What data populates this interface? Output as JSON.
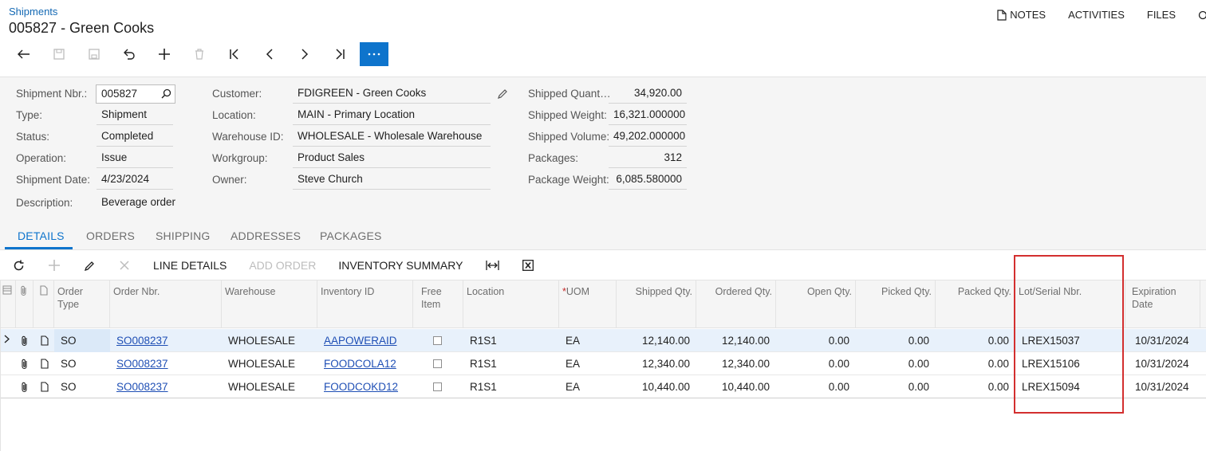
{
  "header": {
    "breadcrumb": "Shipments",
    "title": "005827 - Green Cooks",
    "links": {
      "notes": "NOTES",
      "activities": "ACTIVITIES",
      "files": "FILES"
    }
  },
  "summary": {
    "left": {
      "shipment_nbr": {
        "label": "Shipment Nbr.:",
        "value": "005827"
      },
      "type": {
        "label": "Type:",
        "value": "Shipment"
      },
      "status": {
        "label": "Status:",
        "value": "Completed"
      },
      "operation": {
        "label": "Operation:",
        "value": "Issue"
      },
      "shipment_date": {
        "label": "Shipment Date:",
        "value": "4/23/2024"
      },
      "description": {
        "label": "Description:",
        "value": "Beverage order"
      }
    },
    "middle": {
      "customer": {
        "label": "Customer:",
        "value": "FDIGREEN - Green Cooks"
      },
      "location": {
        "label": "Location:",
        "value": "MAIN - Primary Location"
      },
      "warehouse": {
        "label": "Warehouse ID:",
        "value": "WHOLESALE - Wholesale Warehouse"
      },
      "workgroup": {
        "label": "Workgroup:",
        "value": "Product Sales"
      },
      "owner": {
        "label": "Owner:",
        "value": "Steve Church"
      }
    },
    "right": {
      "shipped_qty": {
        "label": "Shipped Quant…",
        "value": "34,920.00"
      },
      "shipped_weight": {
        "label": "Shipped Weight:",
        "value": "16,321.000000"
      },
      "shipped_volume": {
        "label": "Shipped Volume:",
        "value": "49,202.000000"
      },
      "packages": {
        "label": "Packages:",
        "value": "312"
      },
      "package_weight": {
        "label": "Package Weight:",
        "value": "6,085.580000"
      }
    }
  },
  "tabs": [
    "DETAILS",
    "ORDERS",
    "SHIPPING",
    "ADDRESSES",
    "PACKAGES"
  ],
  "grid_toolbar": {
    "line_details": "LINE DETAILS",
    "add_order": "ADD ORDER",
    "inventory_summary": "INVENTORY SUMMARY"
  },
  "grid": {
    "columns": {
      "order_type": "Order Type",
      "order_nbr": "Order Nbr.",
      "warehouse": "Warehouse",
      "inventory_id": "Inventory ID",
      "free_item": "Free Item",
      "location": "Location",
      "uom_req": "*",
      "uom": "UOM",
      "shipped_qty": "Shipped Qty.",
      "ordered_qty": "Ordered Qty.",
      "open_qty": "Open Qty.",
      "picked_qty": "Picked Qty.",
      "packed_qty": "Packed Qty.",
      "lot_serial": "Lot/Serial Nbr.",
      "expiration": "Expiration Date"
    },
    "rows": [
      {
        "order_type": "SO",
        "order_nbr": "SO008237",
        "warehouse": "WHOLESALE",
        "inventory_id": "AAPOWERAID",
        "location": "R1S1",
        "uom": "EA",
        "shipped_qty": "12,140.00",
        "ordered_qty": "12,140.00",
        "open_qty": "0.00",
        "picked_qty": "0.00",
        "packed_qty": "0.00",
        "lot_serial": "LREX15037",
        "expiration": "10/31/2024"
      },
      {
        "order_type": "SO",
        "order_nbr": "SO008237",
        "warehouse": "WHOLESALE",
        "inventory_id": "FOODCOLA12",
        "location": "R1S1",
        "uom": "EA",
        "shipped_qty": "12,340.00",
        "ordered_qty": "12,340.00",
        "open_qty": "0.00",
        "picked_qty": "0.00",
        "packed_qty": "0.00",
        "lot_serial": "LREX15106",
        "expiration": "10/31/2024"
      },
      {
        "order_type": "SO",
        "order_nbr": "SO008237",
        "warehouse": "WHOLESALE",
        "inventory_id": "FOODCOKD12",
        "location": "R1S1",
        "uom": "EA",
        "shipped_qty": "10,440.00",
        "ordered_qty": "10,440.00",
        "open_qty": "0.00",
        "picked_qty": "0.00",
        "packed_qty": "0.00",
        "lot_serial": "LREX15094",
        "expiration": "10/31/2024"
      }
    ]
  },
  "colors": {
    "accent": "#0e74cc",
    "link": "#1f4fb5",
    "highlight": "#d32f2f"
  }
}
